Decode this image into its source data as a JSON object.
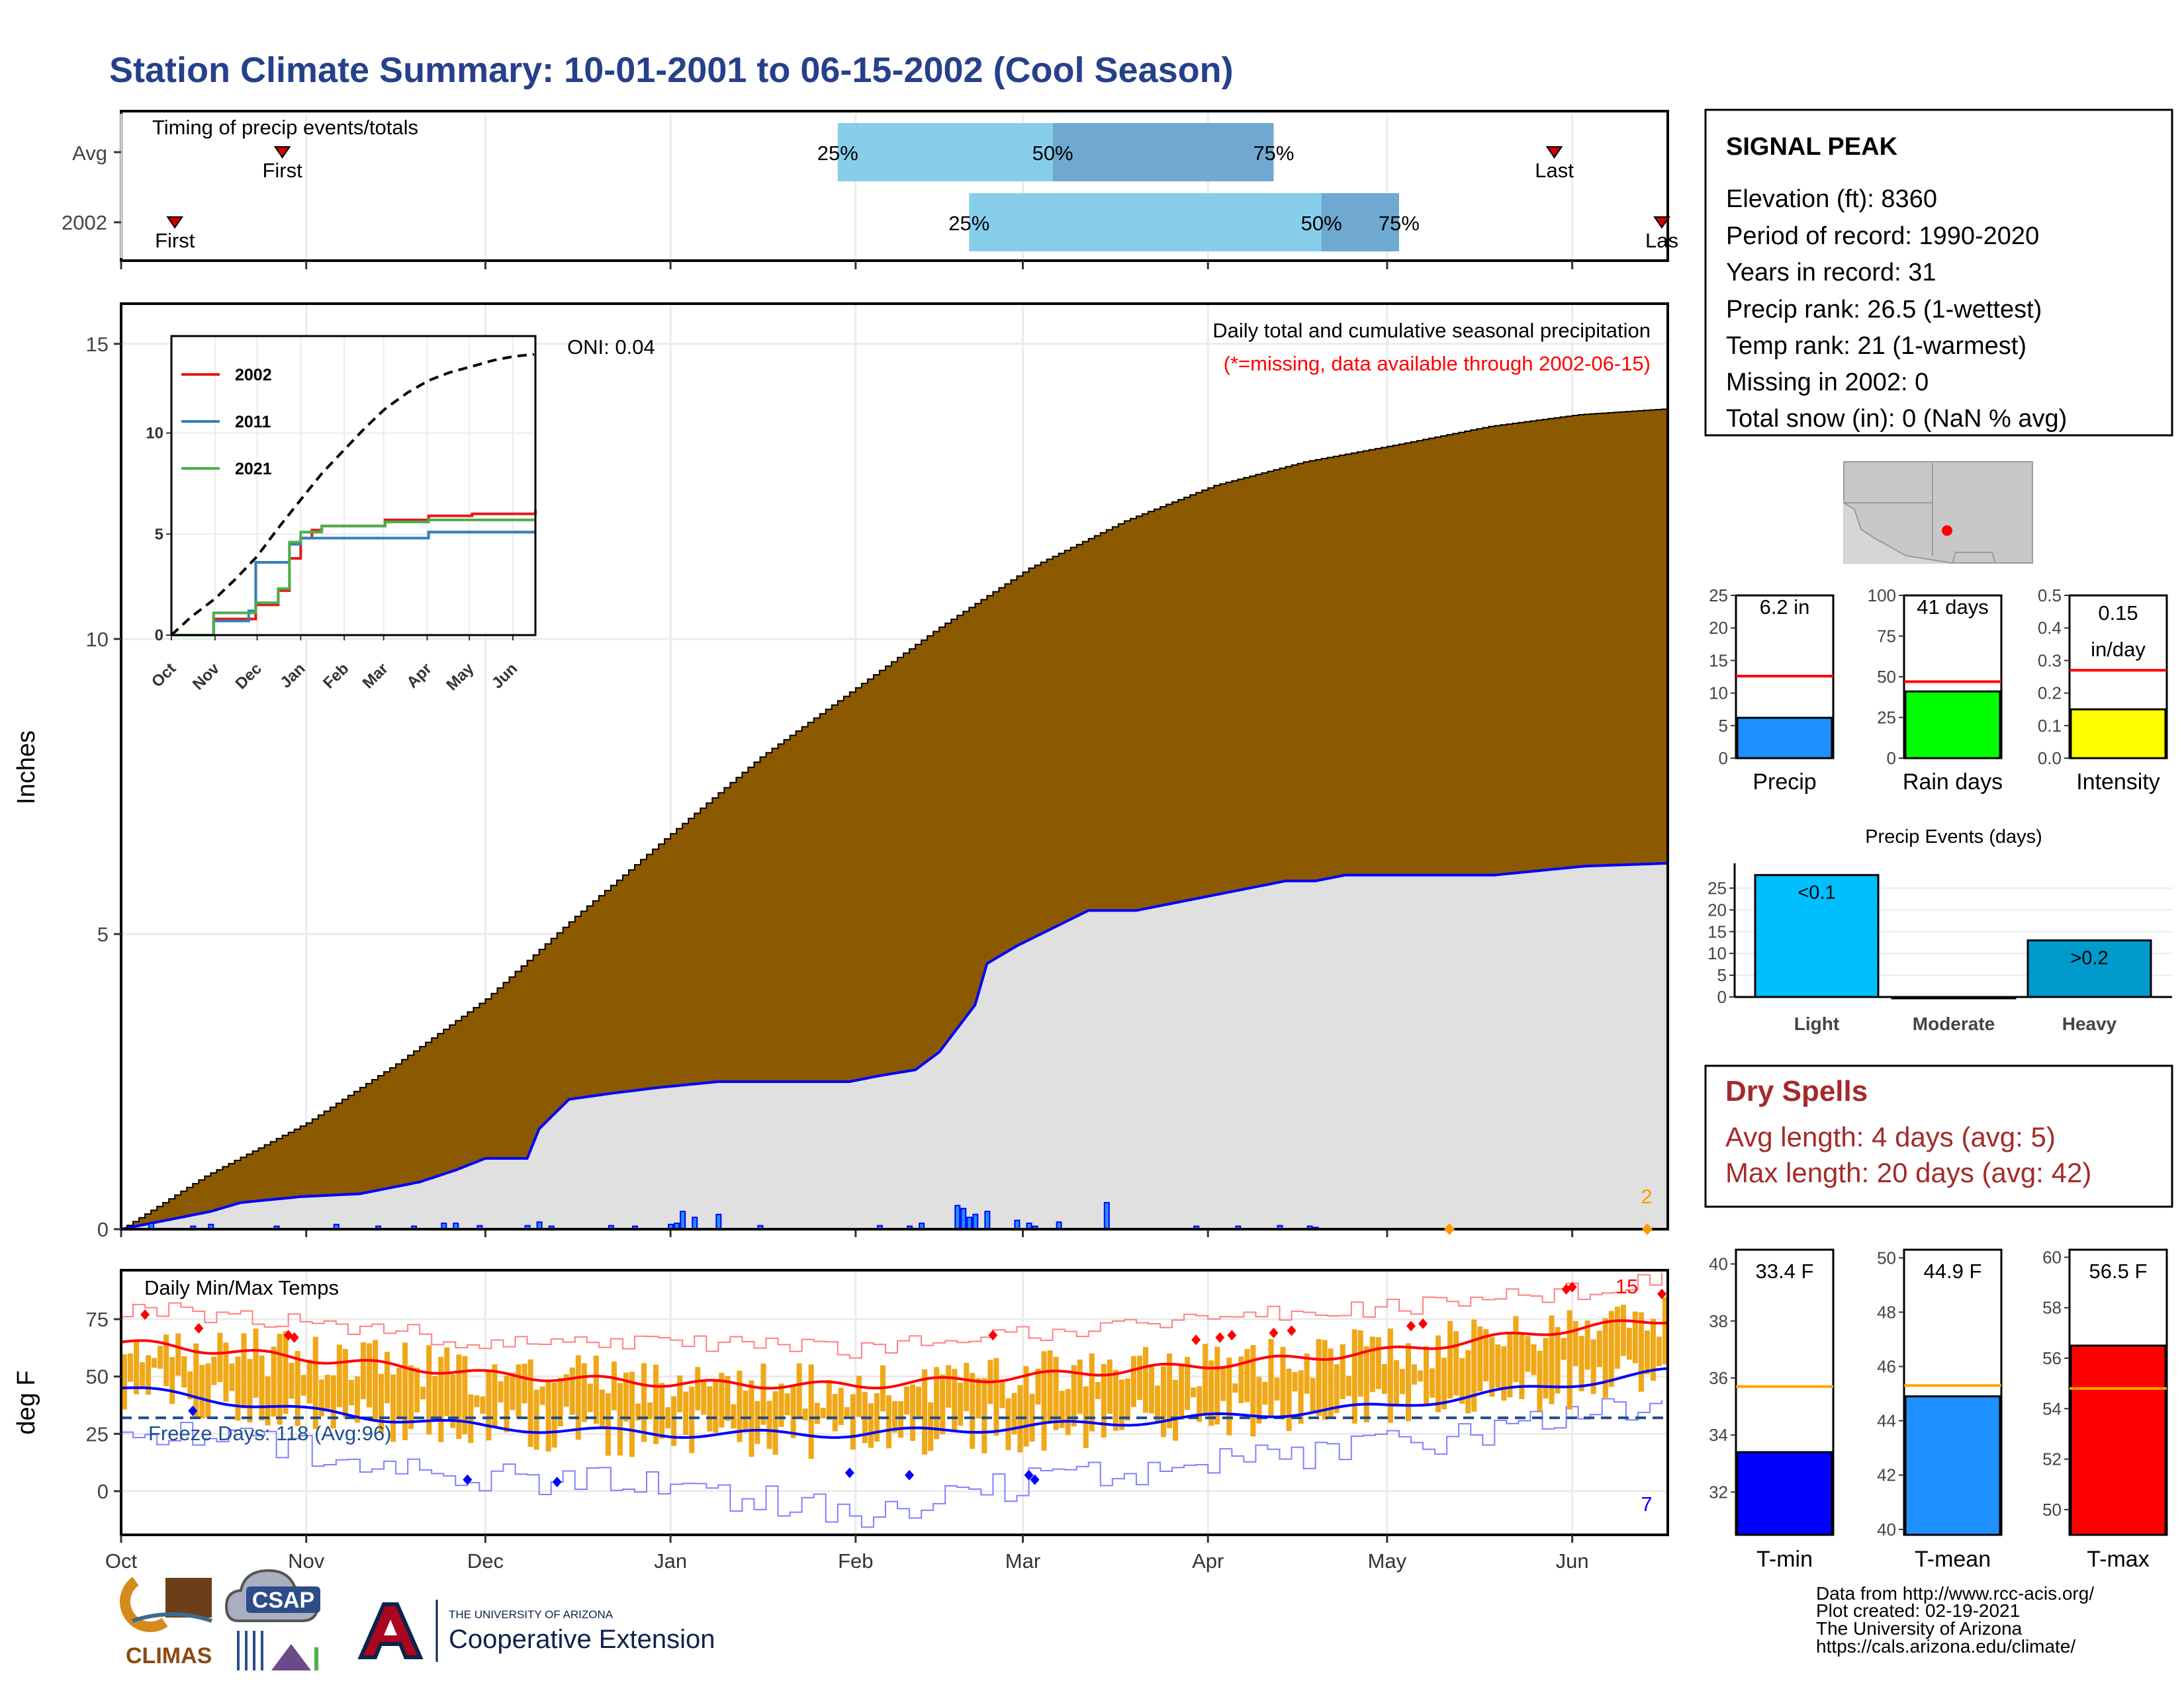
{
  "title": "Station Climate Summary: 10-01-2001 to 06-15-2002 (Cool Season)",
  "colors": {
    "title": "#27408b",
    "avg_area": "#8b5a00",
    "obs_area": "#e0e0e0",
    "obs_line": "#0000ff",
    "timing_light": "#87ceeb",
    "timing_dark": "#6fa8d0",
    "temp_bar": "#f0a818",
    "tmax_avg": "#ff0000",
    "tmin_avg": "#0000ff",
    "freeze_line": "#1f4e8c",
    "dry_spells": "#a52a2a",
    "missing": "#ff0000",
    "orange_marker": "#ff9900"
  },
  "months": [
    "Oct",
    "Nov",
    "Dec",
    "Jan",
    "Feb",
    "Mar",
    "Apr",
    "May",
    "Jun"
  ],
  "timing": {
    "title": "Timing of precip events/totals",
    "rows": [
      {
        "label": "Avg",
        "first_label": "First",
        "first_day": 27,
        "last_label": "Last",
        "last_day": 240,
        "p25": "25%",
        "p50": "50%",
        "p75": "75%",
        "d25": 120,
        "d50": 156,
        "d75": 193
      },
      {
        "label": "2002",
        "first_label": "First",
        "first_day": 9,
        "last_label": "Las",
        "last_day": 258,
        "p25": "25%",
        "p50": "50%",
        "p75": "75%",
        "d25": 142,
        "d50": 201,
        "d75": 214
      }
    ]
  },
  "precip_panel": {
    "ylabel": "Inches",
    "note1": "Daily total and cumulative seasonal precipitation",
    "note2": "(*=missing, data available through 2002-06-15)",
    "oni": "ONI: 0.04",
    "corner_value": "2",
    "yticks": [
      "0",
      "5",
      "10",
      "15"
    ]
  },
  "inset": {
    "legend": [
      "2002",
      "2011",
      "2021"
    ],
    "legend_colors": [
      "#e41a1c",
      "#377eb8",
      "#4daf4a"
    ],
    "yticks": [
      "0",
      "5",
      "10"
    ],
    "xticks": [
      "Oct",
      "Nov",
      "Dec",
      "Jan",
      "Feb",
      "Mar",
      "Apr",
      "May",
      "Jun"
    ]
  },
  "temp_panel": {
    "title": "Daily Min/Max Temps",
    "ylabel": "deg F",
    "freeze_label": "Freeze Days: 118 (Avg:96)",
    "record_high_count": "15",
    "record_low_count": "7",
    "yticks": [
      "0",
      "25",
      "50",
      "75"
    ],
    "freeze_f": 32
  },
  "station": {
    "name": "SIGNAL PEAK",
    "lines": [
      "Elevation (ft): 8360",
      "Period of record: 1990-2020",
      "Years in record: 31",
      "Precip rank: 26.5 (1-wettest)",
      "Temp rank: 21 (1-warmest)",
      "Missing in 2002: 0",
      "Total snow (in): 0 (NaN % avg)"
    ]
  },
  "mini_bars": [
    {
      "label": "Precip",
      "value_text": "6.2 in",
      "value": 6.2,
      "avg": 12.6,
      "ymax": 25,
      "yticks": [
        "0",
        "5",
        "10",
        "15",
        "20",
        "25"
      ],
      "color": "#1e90ff"
    },
    {
      "label": "Rain days",
      "value_text": "41 days",
      "value": 41,
      "avg": 47,
      "ymax": 100,
      "yticks": [
        "0",
        "25",
        "50",
        "75",
        "100"
      ],
      "color": "#00ff00"
    },
    {
      "label": "Intensity",
      "value_text": "0.15 in/day",
      "value_line1": "0.15",
      "value_line2": "in/day",
      "value": 0.15,
      "avg": 0.27,
      "ymax": 0.5,
      "yticks": [
        "0.0",
        "0.1",
        "0.2",
        "0.3",
        "0.4",
        "0.5"
      ],
      "color": "#ffff00"
    }
  ],
  "precip_events": {
    "title": "Precip Events (days)",
    "categories": [
      "Light",
      "Moderate",
      "Heavy"
    ],
    "bar_labels": [
      "<0.1",
      "",
      ">0.2"
    ],
    "values": [
      28,
      0,
      13
    ],
    "colors": [
      "#00bfff",
      "#00bfff",
      "#009acd"
    ],
    "yticks": [
      "0",
      "5",
      "10",
      "15",
      "20",
      "25"
    ]
  },
  "dry_spells": {
    "title": "Dry Spells",
    "line1": "Avg length: 4 days (avg: 5)",
    "line2": "Max length: 20 days (avg: 42)"
  },
  "temp_bars": [
    {
      "label": "T-min",
      "value_text": "33.4 F",
      "value": 33.4,
      "avg": 35.7,
      "ymin": 30.5,
      "ymax": 40.5,
      "ticks": [
        32,
        34,
        36,
        38,
        40
      ],
      "color": "#0000ff"
    },
    {
      "label": "T-mean",
      "value_text": "44.9 F",
      "value": 44.9,
      "avg": 45.3,
      "ymin": 39.8,
      "ymax": 50.3,
      "ticks": [
        40,
        42,
        44,
        46,
        48,
        50
      ],
      "color": "#1e90ff"
    },
    {
      "label": "T-max",
      "value_text": "56.5 F",
      "value": 56.5,
      "avg": 54.8,
      "ymin": 49.0,
      "ymax": 60.3,
      "ticks": [
        50,
        52,
        54,
        56,
        58,
        60
      ],
      "color": "#ff0000"
    }
  ],
  "footer": {
    "line1": "Data from http://www.rcc-acis.org/",
    "line2": "Plot created: 02-19-2021",
    "line3": "The University of Arizona",
    "line4": "https://cals.arizona.edu/climate/"
  },
  "logos": {
    "climas": "CLIMAS",
    "csap": "CSAP",
    "ua_small": "THE UNIVERSITY OF ARIZONA",
    "ua_big": "Cooperative Extension"
  },
  "chart_data": {
    "type": "area",
    "title": "Daily total and cumulative seasonal precipitation",
    "ylabel": "Inches",
    "ylim": [
      0,
      15
    ],
    "x_unit": "days since Oct 1",
    "avg_cumulative": {
      "x": [
        0,
        14,
        31,
        46,
        61,
        76,
        92,
        107,
        122,
        137,
        152,
        168,
        183,
        198,
        214,
        229,
        244,
        259
      ],
      "y": [
        0.0,
        0.9,
        1.8,
        2.8,
        3.9,
        5.3,
        6.7,
        8.0,
        9.1,
        10.2,
        11.2,
        12.0,
        12.6,
        13.0,
        13.3,
        13.6,
        13.8,
        13.9
      ]
    },
    "obs_cumulative": {
      "x": [
        0,
        5,
        15,
        20,
        30,
        40,
        50,
        56,
        61,
        68,
        70,
        75,
        82,
        90,
        100,
        110,
        115,
        122,
        127,
        133,
        137,
        143,
        145,
        150,
        152,
        160,
        162,
        170,
        175,
        180,
        185,
        190,
        195,
        200,
        205,
        230,
        240,
        245,
        259
      ],
      "y": [
        0.0,
        0.1,
        0.3,
        0.45,
        0.55,
        0.6,
        0.8,
        1.0,
        1.2,
        1.2,
        1.7,
        2.2,
        2.3,
        2.4,
        2.5,
        2.5,
        2.5,
        2.5,
        2.6,
        2.7,
        3.0,
        3.8,
        4.5,
        4.8,
        4.9,
        5.3,
        5.4,
        5.4,
        5.5,
        5.6,
        5.7,
        5.8,
        5.9,
        5.9,
        6.0,
        6.0,
        6.1,
        6.15,
        6.2
      ]
    },
    "daily_precip": {
      "x": [
        5,
        12,
        15,
        26,
        36,
        43,
        49,
        54,
        56,
        60,
        68,
        70,
        72,
        82,
        86,
        92,
        93,
        94,
        96,
        100,
        107,
        127,
        132,
        134,
        140,
        141,
        142,
        143,
        145,
        150,
        152,
        153,
        157,
        165,
        180,
        187,
        194,
        199,
        200
      ],
      "y": [
        0.1,
        0.05,
        0.08,
        0.05,
        0.08,
        0.05,
        0.05,
        0.1,
        0.1,
        0.06,
        0.06,
        0.12,
        0.05,
        0.06,
        0.05,
        0.08,
        0.1,
        0.3,
        0.2,
        0.25,
        0.06,
        0.06,
        0.05,
        0.1,
        0.4,
        0.35,
        0.2,
        0.25,
        0.3,
        0.15,
        0.1,
        0.05,
        0.12,
        0.45,
        0.05,
        0.05,
        0.06,
        0.05,
        0.03
      ]
    },
    "inset_series": [
      {
        "name": "2002",
        "x": [
          0,
          30,
          60,
          76,
          84,
          92,
          100,
          107,
          122,
          152,
          183,
          214,
          259
        ],
        "y": [
          0,
          0.8,
          1.5,
          2.2,
          3.8,
          4.8,
          5.2,
          5.4,
          5.4,
          5.7,
          5.9,
          6.0,
          6.2
        ]
      },
      {
        "name": "2011",
        "x": [
          0,
          30,
          55,
          60,
          76,
          84,
          92,
          107,
          152,
          183,
          214,
          259
        ],
        "y": [
          0,
          0.7,
          1.2,
          3.6,
          3.6,
          4.5,
          4.8,
          4.8,
          4.8,
          5.1,
          5.1,
          5.1
        ]
      },
      {
        "name": "2021",
        "x": [
          0,
          30,
          60,
          76,
          84,
          92,
          107,
          122,
          152,
          183,
          259
        ],
        "y": [
          0,
          1.1,
          1.6,
          2.3,
          4.6,
          5.1,
          5.4,
          5.4,
          5.6,
          5.7,
          5.7
        ]
      }
    ],
    "temperature": {
      "tmax_avg": {
        "x": [
          0,
          31,
          61,
          92,
          123,
          151,
          182,
          212,
          240,
          259
        ],
        "y": [
          65,
          58,
          51,
          47,
          46,
          50,
          55,
          61,
          70,
          75
        ]
      },
      "tmin_avg": {
        "x": [
          0,
          31,
          61,
          92,
          123,
          151,
          182,
          212,
          240,
          259
        ],
        "y": [
          45,
          35,
          28,
          25,
          25,
          28,
          32,
          37,
          46,
          52
        ]
      },
      "record_hi": {
        "x": [
          0,
          31,
          61,
          92,
          123,
          151,
          182,
          212,
          240,
          259
        ],
        "y": [
          80,
          74,
          65,
          64,
          62,
          68,
          75,
          80,
          86,
          92
        ]
      },
      "record_lo": {
        "x": [
          0,
          31,
          61,
          92,
          123,
          151,
          182,
          212,
          240,
          259
        ],
        "y": [
          28,
          18,
          6,
          2,
          -10,
          4,
          12,
          20,
          30,
          40
        ]
      },
      "freeze_line": 32
    }
  }
}
